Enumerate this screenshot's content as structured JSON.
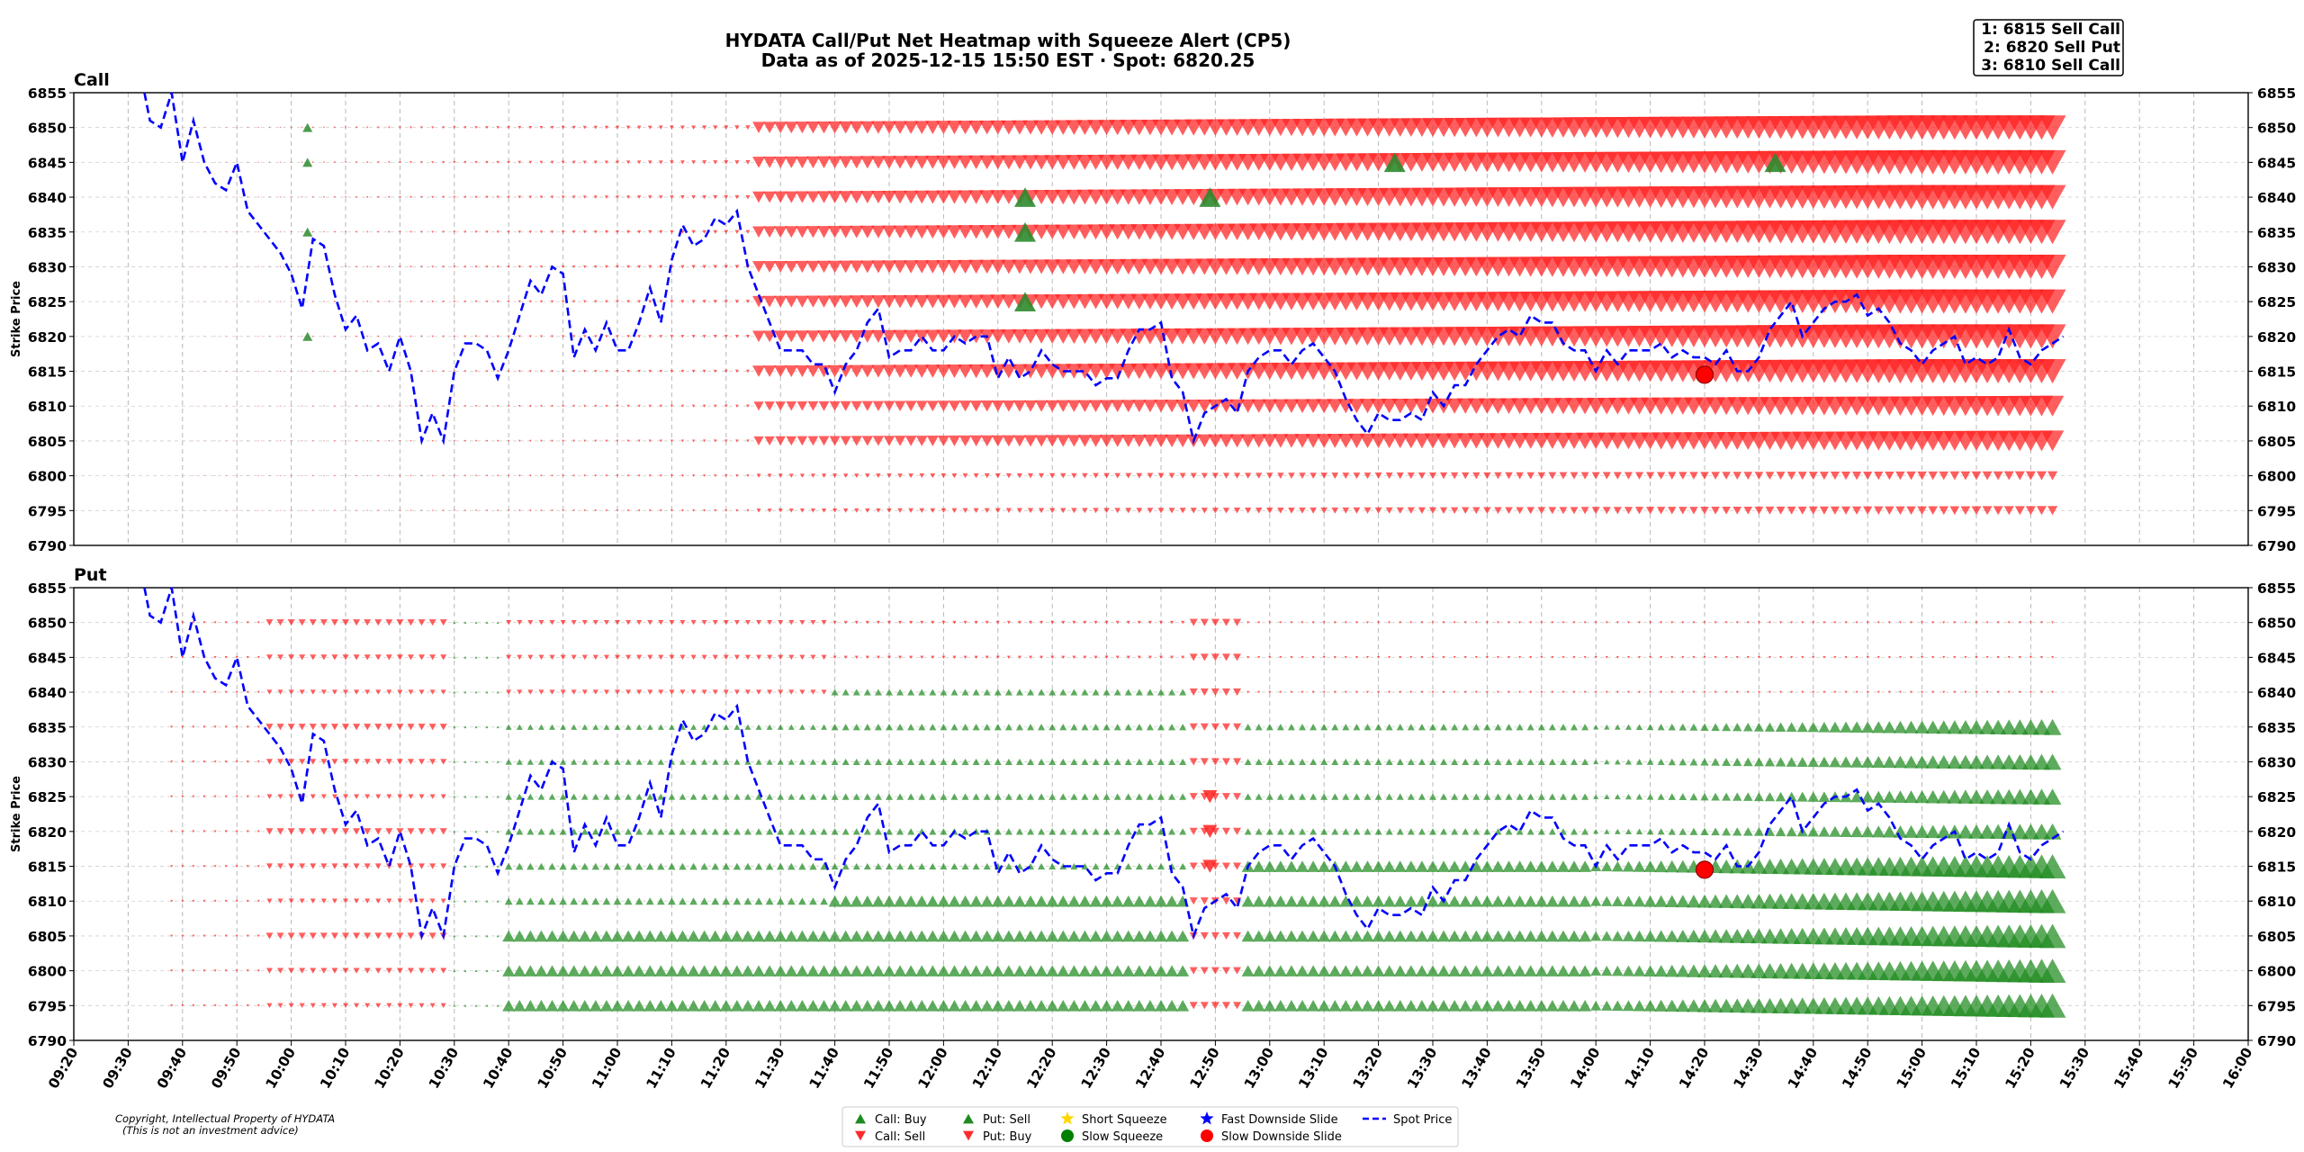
{
  "chart_data": {
    "type": "heatmap",
    "title_line1": "HYDATA Call/Put Net Heatmap with Squeeze Alert (CP5)",
    "title_line2": "Data as of 2025-12-15 15:50 EST · Spot: 6820.25",
    "ylabel": "Strike Price",
    "top_picks": [
      "1: 6815 Sell Call",
      "2: 6820 Sell Put",
      "3: 6810 Sell Call"
    ],
    "copyright_line1": "Copyright, Intellectual Property of HYDATA",
    "copyright_line2": "(This is not an investment advice)",
    "ylim": [
      6790,
      6855
    ],
    "y_ticks": [
      6790,
      6795,
      6800,
      6805,
      6810,
      6815,
      6820,
      6825,
      6830,
      6835,
      6840,
      6845,
      6850,
      6855
    ],
    "strikes": [
      6795,
      6800,
      6805,
      6810,
      6815,
      6820,
      6825,
      6830,
      6835,
      6840,
      6845,
      6850
    ],
    "x_ticks": [
      "09:20",
      "09:30",
      "09:40",
      "09:50",
      "10:00",
      "10:10",
      "10:20",
      "10:30",
      "10:40",
      "10:50",
      "11:00",
      "11:10",
      "11:20",
      "11:30",
      "11:40",
      "11:50",
      "12:00",
      "12:10",
      "12:20",
      "12:30",
      "12:40",
      "12:50",
      "13:00",
      "13:10",
      "13:20",
      "13:30",
      "13:40",
      "13:50",
      "14:00",
      "14:10",
      "14:20",
      "14:30",
      "14:40",
      "14:50",
      "15:00",
      "15:10",
      "15:20",
      "15:30",
      "15:40",
      "15:50",
      "16:00"
    ],
    "x_range_minutes": [
      560,
      960
    ],
    "panels": [
      {
        "name": "Call",
        "title": "Call"
      },
      {
        "name": "Put",
        "title": "Put"
      }
    ],
    "spot_anchor_points": [
      [
        573,
        6858
      ],
      [
        574,
        6851
      ],
      [
        576,
        6850
      ],
      [
        578,
        6856
      ],
      [
        580,
        6845
      ],
      [
        582,
        6851
      ],
      [
        584,
        6845
      ],
      [
        586,
        6842
      ],
      [
        588,
        6841
      ],
      [
        590,
        6845
      ],
      [
        592,
        6838
      ],
      [
        594,
        6836
      ],
      [
        596,
        6834
      ],
      [
        598,
        6832
      ],
      [
        600,
        6829
      ],
      [
        602,
        6824
      ],
      [
        604,
        6834
      ],
      [
        606,
        6833
      ],
      [
        608,
        6826
      ],
      [
        610,
        6821
      ],
      [
        612,
        6823
      ],
      [
        614,
        6818
      ],
      [
        616,
        6819
      ],
      [
        618,
        6815
      ],
      [
        620,
        6820
      ],
      [
        622,
        6815
      ],
      [
        624,
        6805
      ],
      [
        626,
        6809
      ],
      [
        628,
        6805
      ],
      [
        630,
        6815
      ],
      [
        632,
        6819
      ],
      [
        634,
        6819
      ],
      [
        636,
        6818
      ],
      [
        638,
        6814
      ],
      [
        640,
        6818
      ],
      [
        642,
        6823
      ],
      [
        644,
        6828
      ],
      [
        646,
        6826
      ],
      [
        648,
        6830
      ],
      [
        650,
        6829
      ],
      [
        652,
        6817
      ],
      [
        654,
        6821
      ],
      [
        656,
        6818
      ],
      [
        658,
        6822
      ],
      [
        660,
        6818
      ],
      [
        662,
        6818
      ],
      [
        664,
        6822
      ],
      [
        666,
        6827
      ],
      [
        668,
        6822
      ],
      [
        670,
        6831
      ],
      [
        672,
        6836
      ],
      [
        674,
        6833
      ],
      [
        676,
        6834
      ],
      [
        678,
        6837
      ],
      [
        680,
        6836
      ],
      [
        682,
        6838
      ],
      [
        684,
        6830
      ],
      [
        686,
        6826
      ],
      [
        688,
        6822
      ],
      [
        690,
        6818
      ],
      [
        692,
        6818
      ],
      [
        694,
        6818
      ],
      [
        696,
        6816
      ],
      [
        698,
        6816
      ],
      [
        700,
        6812
      ],
      [
        702,
        6816
      ],
      [
        704,
        6818
      ],
      [
        706,
        6822
      ],
      [
        708,
        6824
      ],
      [
        710,
        6817
      ],
      [
        712,
        6818
      ],
      [
        714,
        6818
      ],
      [
        716,
        6820
      ],
      [
        718,
        6818
      ],
      [
        720,
        6818
      ],
      [
        722,
        6820
      ],
      [
        724,
        6819
      ],
      [
        726,
        6820
      ],
      [
        728,
        6820
      ],
      [
        730,
        6814
      ],
      [
        732,
        6817
      ],
      [
        734,
        6814
      ],
      [
        736,
        6815
      ],
      [
        738,
        6818
      ],
      [
        740,
        6816
      ],
      [
        742,
        6815
      ],
      [
        744,
        6815
      ],
      [
        746,
        6815
      ],
      [
        748,
        6813
      ],
      [
        750,
        6814
      ],
      [
        752,
        6814
      ],
      [
        754,
        6818
      ],
      [
        756,
        6821
      ],
      [
        758,
        6821
      ],
      [
        760,
        6822
      ],
      [
        762,
        6814
      ],
      [
        764,
        6812
      ],
      [
        766,
        6805
      ],
      [
        768,
        6809
      ],
      [
        770,
        6810
      ],
      [
        772,
        6811
      ],
      [
        774,
        6809
      ],
      [
        776,
        6815
      ],
      [
        778,
        6817
      ],
      [
        780,
        6818
      ],
      [
        782,
        6818
      ],
      [
        784,
        6816
      ],
      [
        786,
        6818
      ],
      [
        788,
        6819
      ],
      [
        790,
        6817
      ],
      [
        792,
        6815
      ],
      [
        794,
        6811
      ],
      [
        796,
        6808
      ],
      [
        798,
        6806
      ],
      [
        800,
        6809
      ],
      [
        802,
        6808
      ],
      [
        804,
        6808
      ],
      [
        806,
        6809
      ],
      [
        808,
        6808
      ],
      [
        810,
        6812
      ],
      [
        812,
        6810
      ],
      [
        814,
        6813
      ],
      [
        816,
        6813
      ],
      [
        818,
        6816
      ],
      [
        820,
        6818
      ],
      [
        822,
        6820
      ],
      [
        824,
        6821
      ],
      [
        826,
        6820
      ],
      [
        828,
        6823
      ],
      [
        830,
        6822
      ],
      [
        832,
        6822
      ],
      [
        834,
        6819
      ],
      [
        836,
        6818
      ],
      [
        838,
        6818
      ],
      [
        840,
        6815
      ],
      [
        842,
        6818
      ],
      [
        844,
        6816
      ],
      [
        846,
        6818
      ],
      [
        848,
        6818
      ],
      [
        850,
        6818
      ],
      [
        852,
        6819
      ],
      [
        854,
        6817
      ],
      [
        856,
        6818
      ],
      [
        858,
        6817
      ],
      [
        860,
        6817
      ],
      [
        862,
        6816
      ],
      [
        864,
        6818
      ],
      [
        866,
        6815
      ],
      [
        868,
        6815
      ],
      [
        870,
        6817
      ],
      [
        872,
        6821
      ],
      [
        874,
        6823
      ],
      [
        876,
        6825
      ],
      [
        878,
        6820
      ],
      [
        880,
        6822
      ],
      [
        882,
        6824
      ],
      [
        884,
        6825
      ],
      [
        886,
        6825
      ],
      [
        888,
        6826
      ],
      [
        890,
        6823
      ],
      [
        892,
        6824
      ],
      [
        894,
        6822
      ],
      [
        896,
        6819
      ],
      [
        898,
        6818
      ],
      [
        900,
        6816
      ],
      [
        902,
        6818
      ],
      [
        904,
        6819
      ],
      [
        906,
        6820
      ],
      [
        908,
        6816
      ],
      [
        910,
        6817
      ],
      [
        912,
        6816
      ],
      [
        914,
        6817
      ],
      [
        916,
        6821
      ],
      [
        918,
        6817
      ],
      [
        920,
        6816
      ],
      [
        922,
        6818
      ],
      [
        924,
        6819
      ],
      [
        926,
        6820
      ]
    ],
    "call_big_buy_markers": [
      [
        735,
        6840
      ],
      [
        735,
        6835
      ],
      [
        735,
        6825
      ],
      [
        769,
        6840
      ],
      [
        803,
        6845
      ],
      [
        873,
        6845
      ]
    ],
    "call_small_buy_markers": [
      [
        603,
        6850
      ],
      [
        603,
        6845
      ],
      [
        603,
        6835
      ],
      [
        603,
        6820
      ]
    ],
    "slow_downside_slide_markers": [
      [
        860,
        6814.5
      ]
    ],
    "put_buy_red_markers": [
      [
        769,
        6825
      ],
      [
        769,
        6820
      ],
      [
        769,
        6815
      ]
    ],
    "legend": [
      {
        "label": "Call: Buy",
        "marker": "triangle-up",
        "color": "#1f8a1f"
      },
      {
        "label": "Call: Sell",
        "marker": "triangle-down",
        "color": "#ff2b2b"
      },
      {
        "label": "Put: Sell",
        "marker": "triangle-up",
        "color": "#1f8a1f"
      },
      {
        "label": "Put: Buy",
        "marker": "triangle-down",
        "color": "#ff2b2b"
      },
      {
        "label": "Short Squeeze",
        "marker": "star",
        "color": "#ffd700"
      },
      {
        "label": "Slow Squeeze",
        "marker": "circle",
        "color": "#008000"
      },
      {
        "label": "Fast Downside Slide",
        "marker": "star",
        "color": "#0000ff"
      },
      {
        "label": "Slow Downside Slide",
        "marker": "circle",
        "color": "#ff0000"
      },
      {
        "label": "Spot Price",
        "marker": "dash",
        "color": "#0000ff"
      }
    ],
    "colors": {
      "buy": "#2e8b2e",
      "sell": "#ff2b2b",
      "spot": "#0000ff",
      "grid": "#b0b0b0"
    }
  }
}
